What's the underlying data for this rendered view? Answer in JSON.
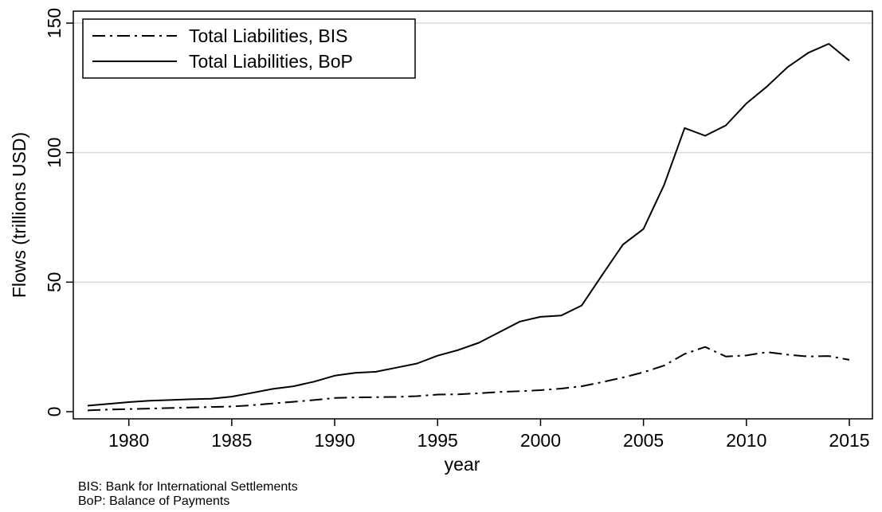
{
  "chart_data": {
    "type": "line",
    "title": "",
    "xlabel": "year",
    "ylabel": "Flows (trillions USD)",
    "xlim": [
      1977.5,
      2015.5
    ],
    "ylim": [
      0,
      150
    ],
    "x_ticks": [
      1980,
      1985,
      1990,
      1995,
      2000,
      2005,
      2010,
      2015
    ],
    "y_ticks": [
      0,
      50,
      100,
      150
    ],
    "grid": "horizontal",
    "legend_position": "top-left",
    "x": [
      1978,
      1979,
      1980,
      1981,
      1982,
      1983,
      1984,
      1985,
      1986,
      1987,
      1988,
      1989,
      1990,
      1991,
      1992,
      1993,
      1994,
      1995,
      1996,
      1997,
      1998,
      1999,
      2000,
      2001,
      2002,
      2003,
      2004,
      2005,
      2006,
      2007,
      2008,
      2009,
      2010,
      2011,
      2012,
      2013,
      2014,
      2015
    ],
    "series": [
      {
        "name": "Total Liabilities, BIS",
        "line_style": "dash-dot",
        "values": [
          0.5,
          0.8,
          1.0,
          1.2,
          1.4,
          1.6,
          1.8,
          2.0,
          2.5,
          3.2,
          3.8,
          4.5,
          5.3,
          5.5,
          5.6,
          5.7,
          6.0,
          6.6,
          6.7,
          7.1,
          7.6,
          7.9,
          8.3,
          8.9,
          9.8,
          11.4,
          13.2,
          15.2,
          17.8,
          22.3,
          25.0,
          21.3,
          21.7,
          23.0,
          22.0,
          21.3,
          21.5,
          20.0
        ]
      },
      {
        "name": "Total Liabilities, BoP",
        "line_style": "solid",
        "values": [
          2.3,
          3.0,
          3.7,
          4.2,
          4.5,
          4.8,
          5.0,
          5.8,
          7.3,
          8.8,
          9.8,
          11.6,
          13.9,
          15.0,
          15.4,
          17.0,
          18.6,
          21.6,
          23.8,
          26.6,
          30.7,
          34.8,
          36.6,
          37.1,
          41.0,
          52.8,
          64.5,
          70.5,
          87.5,
          109.5,
          106.5,
          110.5,
          119.0,
          125.5,
          133.0,
          138.5,
          142.0,
          135.5
        ]
      }
    ]
  },
  "notes": [
    "BIS: Bank for International Settlements",
    "BoP: Balance of Payments"
  ]
}
